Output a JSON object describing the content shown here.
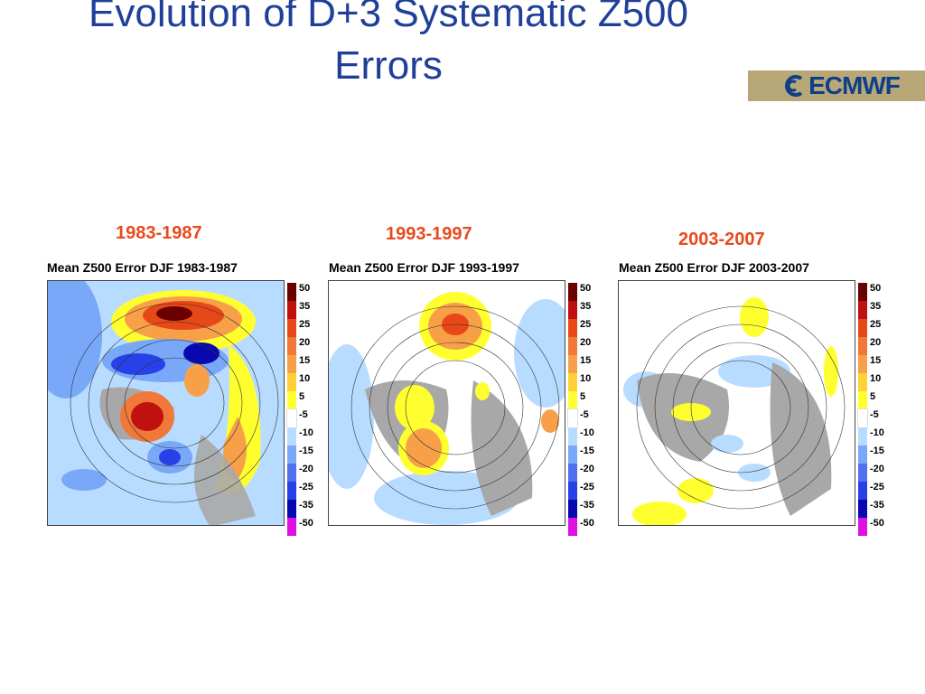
{
  "slide": {
    "title_line1": "Evolution of D+3 Systematic Z500",
    "title_line2": "Errors"
  },
  "logo": {
    "text": "ECMWF",
    "icon": "ecmwf-logo-icon"
  },
  "panels": [
    {
      "period": "1983-1987",
      "map_title": "Mean Z500 Error DJF 1983-1987"
    },
    {
      "period": "1993-1997",
      "map_title": "Mean Z500 Error DJF 1993-1997"
    },
    {
      "period": "2003-2007",
      "map_title": "Mean Z500 Error DJF 2003-2007"
    }
  ],
  "color_scale": {
    "levels": [
      "50",
      "35",
      "25",
      "20",
      "15",
      "10",
      "5",
      "-5",
      "-10",
      "-15",
      "-20",
      "-25",
      "-35",
      "-50"
    ],
    "colors": [
      "#6b0000",
      "#c01010",
      "#e84818",
      "#f07838",
      "#f8a048",
      "#ffd038",
      "#ffff30",
      "#ffffff",
      "#b8dcff",
      "#7aa8f8",
      "#5070f0",
      "#2840e8",
      "#0808b0",
      "#e010e0"
    ]
  },
  "map_colors": {
    "land": "#a8a8a8",
    "ocean": "#ffffff"
  }
}
